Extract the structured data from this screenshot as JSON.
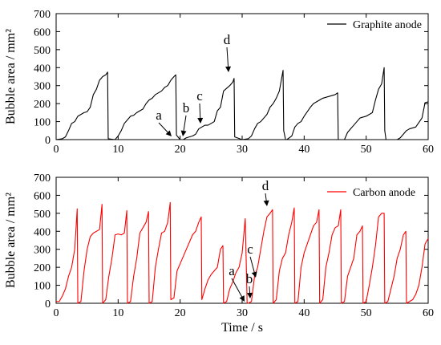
{
  "chart_data": [
    {
      "type": "line",
      "title": "",
      "xlabel": "",
      "ylabel": "Bubble area / mm²",
      "xlim": [
        0,
        60
      ],
      "ylim": [
        0,
        700
      ],
      "xticks": [
        0,
        10,
        20,
        30,
        40,
        50,
        60
      ],
      "yticks": [
        0,
        100,
        200,
        300,
        400,
        500,
        600,
        700
      ],
      "legend_placement": "top-right",
      "grid": false,
      "series": [
        {
          "name": "Graphite anode",
          "color": "#000000",
          "x": [
            0,
            1,
            1.5,
            2,
            2.5,
            3,
            3.5,
            4.5,
            5,
            5.5,
            6,
            6.5,
            7,
            7.5,
            8,
            8.3,
            8.4,
            9.5,
            10,
            10.5,
            11,
            11.5,
            12,
            12.5,
            13,
            14,
            14.5,
            15,
            15.5,
            16,
            17,
            17.5,
            18,
            18.5,
            19,
            19.3,
            19.4,
            20,
            20.5,
            21,
            21.5,
            22,
            22.5,
            23,
            24,
            24.5,
            25,
            25.5,
            26,
            26.5,
            27,
            28,
            28.5,
            28.7,
            28.8,
            30,
            31,
            31.5,
            32,
            32.5,
            33,
            34,
            34.5,
            35,
            35.5,
            36,
            36.6,
            36.7,
            37,
            37.2,
            38,
            38.5,
            39,
            39.5,
            40,
            41,
            41.5,
            42,
            42.5,
            43,
            44,
            44.5,
            45,
            45.4,
            45.5,
            46,
            46.5,
            47,
            47.5,
            48,
            48.5,
            49,
            50,
            50.5,
            51,
            51.5,
            52,
            52.5,
            52.9,
            53,
            53.2,
            54,
            55,
            55.5,
            56,
            56.5,
            57,
            57.5,
            58,
            59,
            59.5,
            60
          ],
          "values": [
            0,
            5,
            15,
            50,
            90,
            100,
            130,
            150,
            155,
            180,
            250,
            280,
            330,
            350,
            360,
            375,
            5,
            0,
            20,
            50,
            90,
            110,
            130,
            135,
            150,
            170,
            200,
            220,
            230,
            250,
            270,
            290,
            300,
            330,
            350,
            360,
            25,
            0,
            0,
            10,
            15,
            20,
            30,
            60,
            80,
            80,
            90,
            100,
            160,
            180,
            270,
            300,
            320,
            340,
            15,
            0,
            5,
            20,
            60,
            90,
            100,
            140,
            180,
            200,
            230,
            270,
            385,
            50,
            0,
            0,
            20,
            70,
            90,
            100,
            130,
            180,
            200,
            210,
            220,
            230,
            240,
            245,
            250,
            260,
            0,
            0,
            0,
            40,
            60,
            80,
            100,
            120,
            130,
            140,
            150,
            220,
            280,
            310,
            400,
            50,
            0,
            0,
            0,
            10,
            30,
            50,
            60,
            65,
            70,
            120,
            205,
            210
          ]
        }
      ],
      "annotations": [
        {
          "label": "a",
          "x": 19.9,
          "y": 8
        },
        {
          "label": "b",
          "x": 20.8,
          "y": 8
        },
        {
          "label": "c",
          "x": 23.5,
          "y": 95
        },
        {
          "label": "d",
          "x": 28.5,
          "y": 340
        }
      ]
    },
    {
      "type": "line",
      "title": "",
      "xlabel": "Time / s",
      "ylabel": "Bubble area / mm²",
      "xlim": [
        0,
        60
      ],
      "ylim": [
        0,
        700
      ],
      "xticks": [
        0,
        10,
        20,
        30,
        40,
        50,
        60
      ],
      "yticks": [
        0,
        100,
        200,
        300,
        400,
        500,
        600,
        700
      ],
      "legend_placement": "top-right",
      "grid": false,
      "series": [
        {
          "name": "Carbon anode",
          "color": "#ff0000",
          "x": [
            0,
            0.5,
            1,
            1.5,
            2,
            2.5,
            3,
            3.4,
            3.5,
            4,
            4.5,
            5,
            5.5,
            6,
            6.5,
            7,
            7.4,
            7.5,
            8,
            8.5,
            9,
            9.5,
            10,
            10.5,
            11,
            11.4,
            11.5,
            12,
            12.5,
            13,
            13.5,
            14,
            14.5,
            14.9,
            15,
            15.5,
            16,
            16.5,
            17,
            17.5,
            18,
            18.4,
            18.5,
            19,
            19.5,
            20,
            21,
            21.5,
            22,
            22.5,
            23,
            23.4,
            23.5,
            24,
            24.5,
            25,
            25.5,
            26,
            26.5,
            26.9,
            27,
            27.5,
            28,
            28.5,
            29,
            29.5,
            30,
            30.5,
            30.8,
            30.9,
            31,
            31.5,
            32,
            32.5,
            33,
            33.5,
            34,
            34.5,
            34.9,
            35,
            35.5,
            36,
            36.5,
            37,
            37.5,
            38,
            38.4,
            38.5,
            39,
            39.5,
            40,
            40.5,
            41,
            41.5,
            42,
            42.4,
            42.5,
            43,
            43.5,
            44,
            44.5,
            45,
            45.5,
            45.9,
            46,
            46.5,
            47,
            47.5,
            48,
            48.5,
            49,
            49.4,
            49.5,
            50,
            50.5,
            51,
            51.5,
            52,
            52.5,
            52.9,
            53,
            53.5,
            54,
            54.5,
            55,
            55.5,
            56,
            56.4,
            56.5,
            57,
            57.5,
            58,
            58.5,
            59,
            59.5,
            60
          ],
          "values": [
            10,
            10,
            40,
            80,
            150,
            200,
            300,
            525,
            0,
            10,
            180,
            300,
            370,
            390,
            400,
            410,
            550,
            0,
            20,
            150,
            250,
            380,
            385,
            380,
            390,
            515,
            0,
            10,
            150,
            250,
            390,
            420,
            450,
            510,
            0,
            10,
            200,
            300,
            390,
            400,
            450,
            560,
            20,
            30,
            180,
            220,
            300,
            340,
            380,
            400,
            450,
            480,
            20,
            80,
            130,
            160,
            180,
            200,
            300,
            320,
            0,
            10,
            80,
            120,
            170,
            200,
            280,
            470,
            5,
            0,
            0,
            10,
            150,
            200,
            300,
            400,
            480,
            500,
            520,
            0,
            20,
            180,
            250,
            280,
            380,
            450,
            530,
            0,
            10,
            200,
            280,
            330,
            380,
            430,
            450,
            520,
            0,
            20,
            200,
            280,
            380,
            420,
            430,
            520,
            0,
            10,
            150,
            200,
            250,
            380,
            400,
            430,
            0,
            10,
            100,
            200,
            320,
            480,
            500,
            500,
            0,
            10,
            80,
            150,
            250,
            300,
            380,
            400,
            0,
            10,
            20,
            50,
            100,
            200,
            330,
            360
          ]
        }
      ],
      "annotations": [
        {
          "label": "a",
          "x": 30.9,
          "y": 5
        },
        {
          "label": "b",
          "x": 31.3,
          "y": 20
        },
        {
          "label": "c",
          "x": 32.6,
          "y": 140
        },
        {
          "label": "d",
          "x": 34.9,
          "y": 520
        }
      ]
    }
  ]
}
